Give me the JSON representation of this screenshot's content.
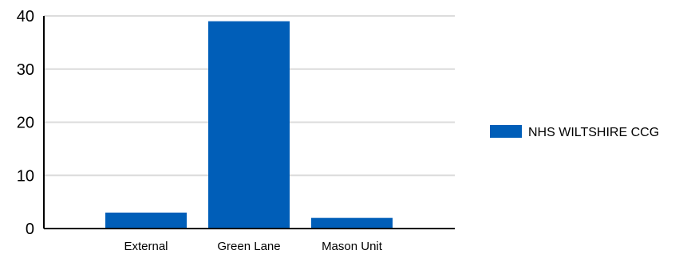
{
  "chart_data": {
    "type": "bar",
    "categories": [
      "External",
      "Green Lane",
      "Mason Unit"
    ],
    "series": [
      {
        "name": "NHS WILTSHIRE CCG",
        "values": [
          3,
          39,
          2
        ],
        "color": "#005EB8"
      }
    ],
    "ylim": [
      0,
      40
    ],
    "yticks": [
      0,
      10,
      20,
      30,
      40
    ],
    "ytick_labels": [
      "0",
      "10",
      "20",
      "30",
      "40"
    ],
    "grid": true,
    "legend_position": "right"
  }
}
